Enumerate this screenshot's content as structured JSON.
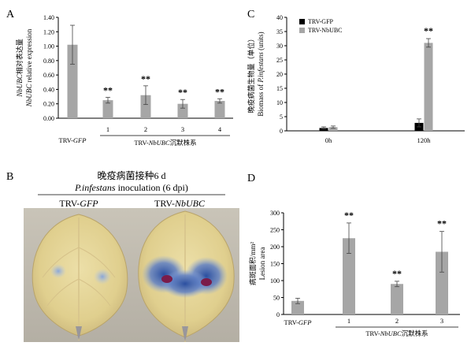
{
  "panels": {
    "A": {
      "letter": "A"
    },
    "B": {
      "letter": "B",
      "title_cn": "晚疫病菌接种6 d",
      "title_en_italic": "P.infestans",
      "title_en_rest": " inoculation (6 dpi)",
      "leaf_left_label_plain": "TRV-",
      "leaf_left_label_italic": "GFP",
      "leaf_right_label_plain": "TRV-",
      "leaf_right_label_italic": "NbUBC"
    },
    "C": {
      "letter": "C"
    },
    "D": {
      "letter": "D"
    }
  },
  "chart_data": [
    {
      "panel": "A",
      "type": "bar",
      "categories": [
        "TRV-GFP",
        "1",
        "2",
        "3",
        "4"
      ],
      "values": [
        1.02,
        0.25,
        0.32,
        0.2,
        0.24
      ],
      "errors": [
        0.27,
        0.04,
        0.13,
        0.06,
        0.03
      ],
      "significance": [
        "",
        "**",
        "**",
        "**",
        "**"
      ],
      "ylabel_line1": "NbUBC相对表达量",
      "ylabel_line2": "NbUBC relative expression",
      "group_label": "TRV-NbUBC沉默株系",
      "ylim": [
        0,
        1.4
      ],
      "yticks": [
        "0.00",
        "0.20",
        "0.40",
        "0.60",
        "0.80",
        "1.00",
        "1.20",
        "1.40"
      ],
      "bar_color": "#a6a6a6"
    },
    {
      "panel": "C",
      "type": "bar",
      "categories": [
        "0h",
        "120h"
      ],
      "series": [
        {
          "name": "TRV-GFP",
          "values": [
            1.0,
            2.8
          ],
          "errors": [
            0.4,
            1.4
          ],
          "color": "#000000"
        },
        {
          "name": "TRV-NbUBC",
          "values": [
            1.3,
            31.0
          ],
          "errors": [
            0.4,
            1.5
          ],
          "color": "#a6a6a6"
        }
      ],
      "significance": [
        "",
        "**"
      ],
      "ylabel_line1": "晚疫病菌生物量（单位）",
      "ylabel_line2": "Biomass of P.infestans (units)",
      "ylim": [
        0,
        40
      ],
      "yticks": [
        "0",
        "5",
        "10",
        "15",
        "20",
        "25",
        "30",
        "35",
        "40"
      ],
      "legend_position": "top-left"
    },
    {
      "panel": "D",
      "type": "bar",
      "categories": [
        "TRV-GFP",
        "1",
        "2",
        "3"
      ],
      "values": [
        40,
        225,
        90,
        185
      ],
      "errors": [
        8,
        45,
        8,
        60
      ],
      "significance": [
        "",
        "**",
        "**",
        "**"
      ],
      "ylabel_line1": "病斑面积/mm²",
      "ylabel_line2": "Lesion area",
      "group_label": "TRV-NbUBC沉默株系",
      "ylim": [
        0,
        300
      ],
      "yticks": [
        "0",
        "50",
        "100",
        "150",
        "200",
        "250",
        "300"
      ],
      "bar_color": "#a6a6a6"
    }
  ]
}
